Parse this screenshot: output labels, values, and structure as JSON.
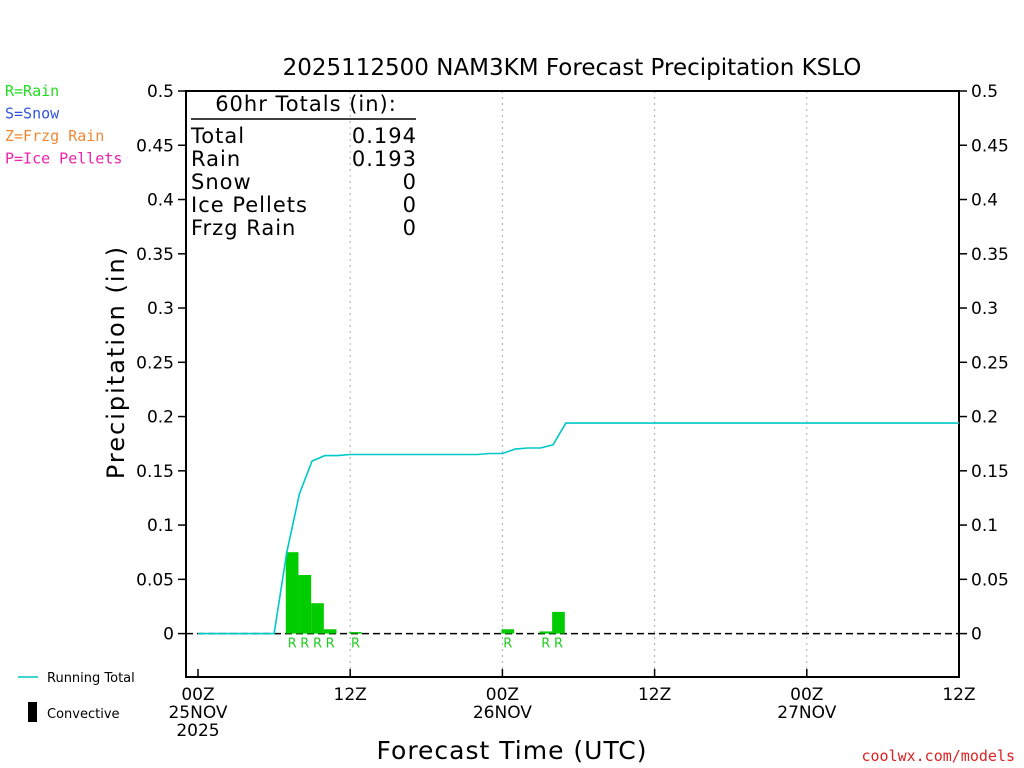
{
  "chart_data": {
    "type": "bar",
    "title": "2025112500 NAM3KM Forecast Precipitation KSLO",
    "xlabel": "Forecast Time (UTC)",
    "ylabel": "Precipitation (in)",
    "ylim": [
      -0.04,
      0.5
    ],
    "xlim_hours": [
      0,
      60
    ],
    "yticks": [
      "0.5",
      "0.45",
      "0.4",
      "0.35",
      "0.3",
      "0.25",
      "0.2",
      "0.15",
      "0.1",
      "0.05",
      "0"
    ],
    "ytick_values": [
      0.5,
      0.45,
      0.4,
      0.35,
      0.3,
      0.25,
      0.2,
      0.15,
      0.1,
      0.05,
      0
    ],
    "xticks": [
      {
        "hour": 0,
        "line1": "00Z",
        "line2": "25NOV",
        "line3": "2025"
      },
      {
        "hour": 12,
        "line1": "12Z",
        "line2": "",
        "line3": ""
      },
      {
        "hour": 24,
        "line1": "00Z",
        "line2": "26NOV",
        "line3": ""
      },
      {
        "hour": 36,
        "line1": "12Z",
        "line2": "",
        "line3": ""
      },
      {
        "hour": 48,
        "line1": "00Z",
        "line2": "27NOV",
        "line3": ""
      },
      {
        "hour": 60,
        "line1": "12Z",
        "line2": "",
        "line3": ""
      }
    ],
    "legend_types": [
      {
        "text": "R=Rain",
        "color": "#22dd22"
      },
      {
        "text": "S=Snow",
        "color": "#3355dd"
      },
      {
        "text": "Z=Frzg Rain",
        "color": "#ee8833"
      },
      {
        "text": "P=Ice Pellets",
        "color": "#ee22aa"
      }
    ],
    "legend_series": [
      {
        "name": "Running Total",
        "color": "#00c8c8"
      },
      {
        "name": "Convective",
        "color": "#000000"
      }
    ],
    "totals": {
      "title": "60hr Totals (in):",
      "rows": [
        {
          "label": "Total",
          "value": "0.194"
        },
        {
          "label": "Rain",
          "value": "0.193"
        },
        {
          "label": "Snow",
          "value": "0"
        },
        {
          "label": "Ice Pellets",
          "value": "0"
        },
        {
          "label": "Frzg Rain",
          "value": "0"
        }
      ]
    },
    "bars": [
      {
        "hour": 7,
        "value": 0.075,
        "type": "R"
      },
      {
        "hour": 8,
        "value": 0.054,
        "type": "R"
      },
      {
        "hour": 9,
        "value": 0.028,
        "type": "R"
      },
      {
        "hour": 10,
        "value": 0.004,
        "type": "R"
      },
      {
        "hour": 12,
        "value": 0.001,
        "type": "R"
      },
      {
        "hour": 24,
        "value": 0.004,
        "type": "R"
      },
      {
        "hour": 27,
        "value": 0.002,
        "type": "R"
      },
      {
        "hour": 28,
        "value": 0.02,
        "type": "R"
      }
    ],
    "running_total": {
      "x": [
        0,
        1,
        2,
        3,
        4,
        5,
        6,
        7,
        8,
        9,
        10,
        11,
        12,
        13,
        14,
        15,
        16,
        17,
        18,
        19,
        20,
        21,
        22,
        23,
        24,
        25,
        26,
        27,
        28,
        29,
        30,
        32,
        34,
        36,
        40,
        44,
        48,
        52,
        56,
        60
      ],
      "y": [
        0,
        0,
        0,
        0,
        0,
        0,
        0,
        0.075,
        0.129,
        0.159,
        0.164,
        0.164,
        0.165,
        0.165,
        0.165,
        0.165,
        0.165,
        0.165,
        0.165,
        0.165,
        0.165,
        0.165,
        0.165,
        0.166,
        0.166,
        0.17,
        0.171,
        0.171,
        0.174,
        0.194,
        0.194,
        0.194,
        0.194,
        0.194,
        0.194,
        0.194,
        0.194,
        0.194,
        0.194,
        0.194
      ]
    }
  },
  "credit": "coolwx.com/models"
}
